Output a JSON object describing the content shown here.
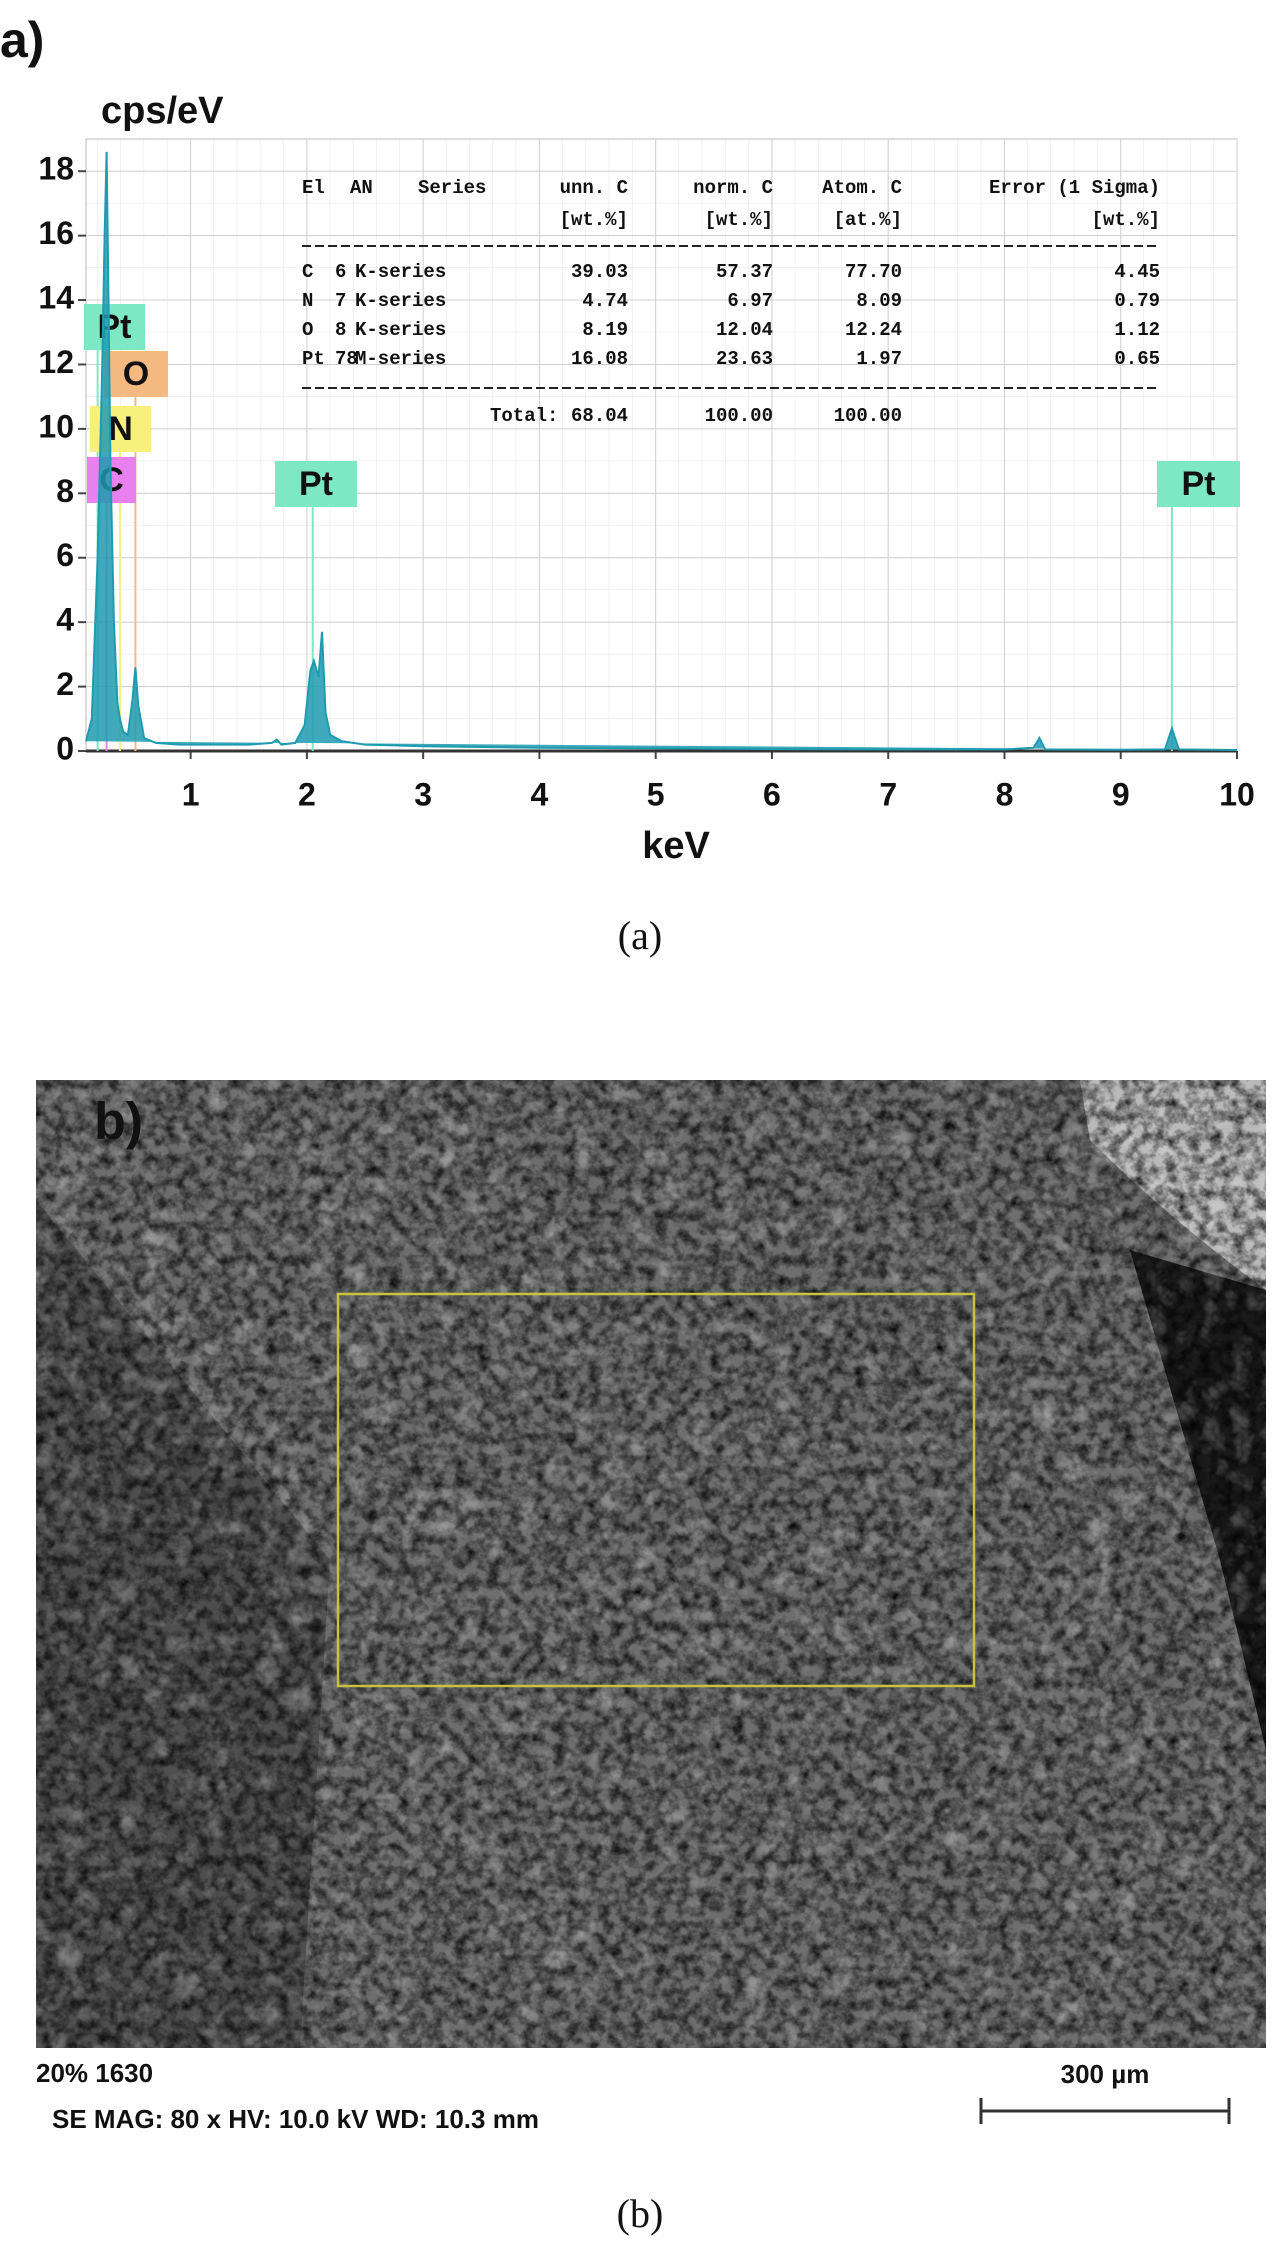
{
  "panel_label_a": "a)",
  "caption_a": "(a)",
  "chart_data": {
    "type": "line",
    "y_label": "cps/eV",
    "x_label": "keV",
    "x": [
      0.1,
      0.15,
      0.2,
      0.24,
      0.26,
      0.277,
      0.29,
      0.31,
      0.34,
      0.37,
      0.392,
      0.42,
      0.46,
      0.5,
      0.525,
      0.55,
      0.6,
      0.7,
      0.9,
      1.2,
      1.5,
      1.7,
      1.74,
      1.78,
      1.9,
      1.98,
      2.03,
      2.06,
      2.1,
      2.13,
      2.16,
      2.2,
      2.3,
      2.5,
      3.0,
      4.0,
      5.0,
      6.0,
      7.0,
      8.0,
      8.25,
      8.3,
      8.35,
      9.0,
      9.38,
      9.44,
      9.5,
      10.0
    ],
    "values": [
      0.3,
      1.0,
      6.0,
      12.0,
      16.0,
      18.6,
      15.0,
      9.0,
      4.0,
      1.5,
      1.0,
      0.6,
      0.5,
      1.6,
      2.6,
      1.4,
      0.4,
      0.25,
      0.2,
      0.2,
      0.2,
      0.25,
      0.35,
      0.2,
      0.25,
      0.8,
      2.5,
      2.8,
      2.3,
      3.7,
      1.2,
      0.5,
      0.3,
      0.2,
      0.15,
      0.1,
      0.08,
      0.06,
      0.05,
      0.05,
      0.1,
      0.4,
      0.05,
      0.04,
      0.05,
      0.7,
      0.05,
      0.03
    ],
    "color": "#1f9bb0",
    "xlim": [
      0.1,
      10
    ],
    "xticks": [
      1,
      2,
      3,
      4,
      5,
      6,
      7,
      8,
      9,
      10
    ],
    "ylim": [
      0,
      19
    ],
    "yticks": [
      0,
      2,
      4,
      6,
      8,
      10,
      12,
      14,
      16,
      18
    ],
    "grid": true,
    "peak_labels": [
      {
        "label": "Pt",
        "x": 0.2,
        "color": "#7ee8c4"
      },
      {
        "label": "O",
        "x": 0.525,
        "color": "#f5b982"
      },
      {
        "label": "N",
        "x": 0.392,
        "color": "#f7f07a"
      },
      {
        "label": "C",
        "x": 0.277,
        "color": "#e880f0"
      },
      {
        "label": "Pt",
        "x": 2.05,
        "color": "#7ee8c4"
      },
      {
        "label": "Pt",
        "x": 9.44,
        "color": "#7ee8c4"
      }
    ],
    "table": {
      "header": [
        "El",
        "AN",
        "Series",
        "unn. C",
        "norm. C",
        "Atom. C",
        "Error (1 Sigma)"
      ],
      "units": [
        "[wt.%]",
        "[wt.%]",
        "[at.%]",
        "[wt.%]"
      ],
      "rows": [
        [
          "C",
          "6",
          "K-series",
          "39.03",
          "57.37",
          "77.70",
          "4.45"
        ],
        [
          "N",
          "7",
          "K-series",
          "4.74",
          "6.97",
          "8.09",
          "0.79"
        ],
        [
          "O",
          "8",
          "K-series",
          "8.19",
          "12.04",
          "12.24",
          "1.12"
        ],
        [
          "Pt",
          "78",
          "M-series",
          "16.08",
          "23.63",
          "1.97",
          "0.65"
        ]
      ],
      "total": [
        "Total:",
        "68.04",
        "100.00",
        "100.00"
      ]
    }
  },
  "sem_image": {
    "panel_label": "b)",
    "info_line_1": "20% 1630",
    "info_line_2": "SE  MAG: 80 x  HV: 10.0 kV  WD: 10.3 mm",
    "scale_bar_label": "300 µm"
  },
  "caption_b": "(b)"
}
